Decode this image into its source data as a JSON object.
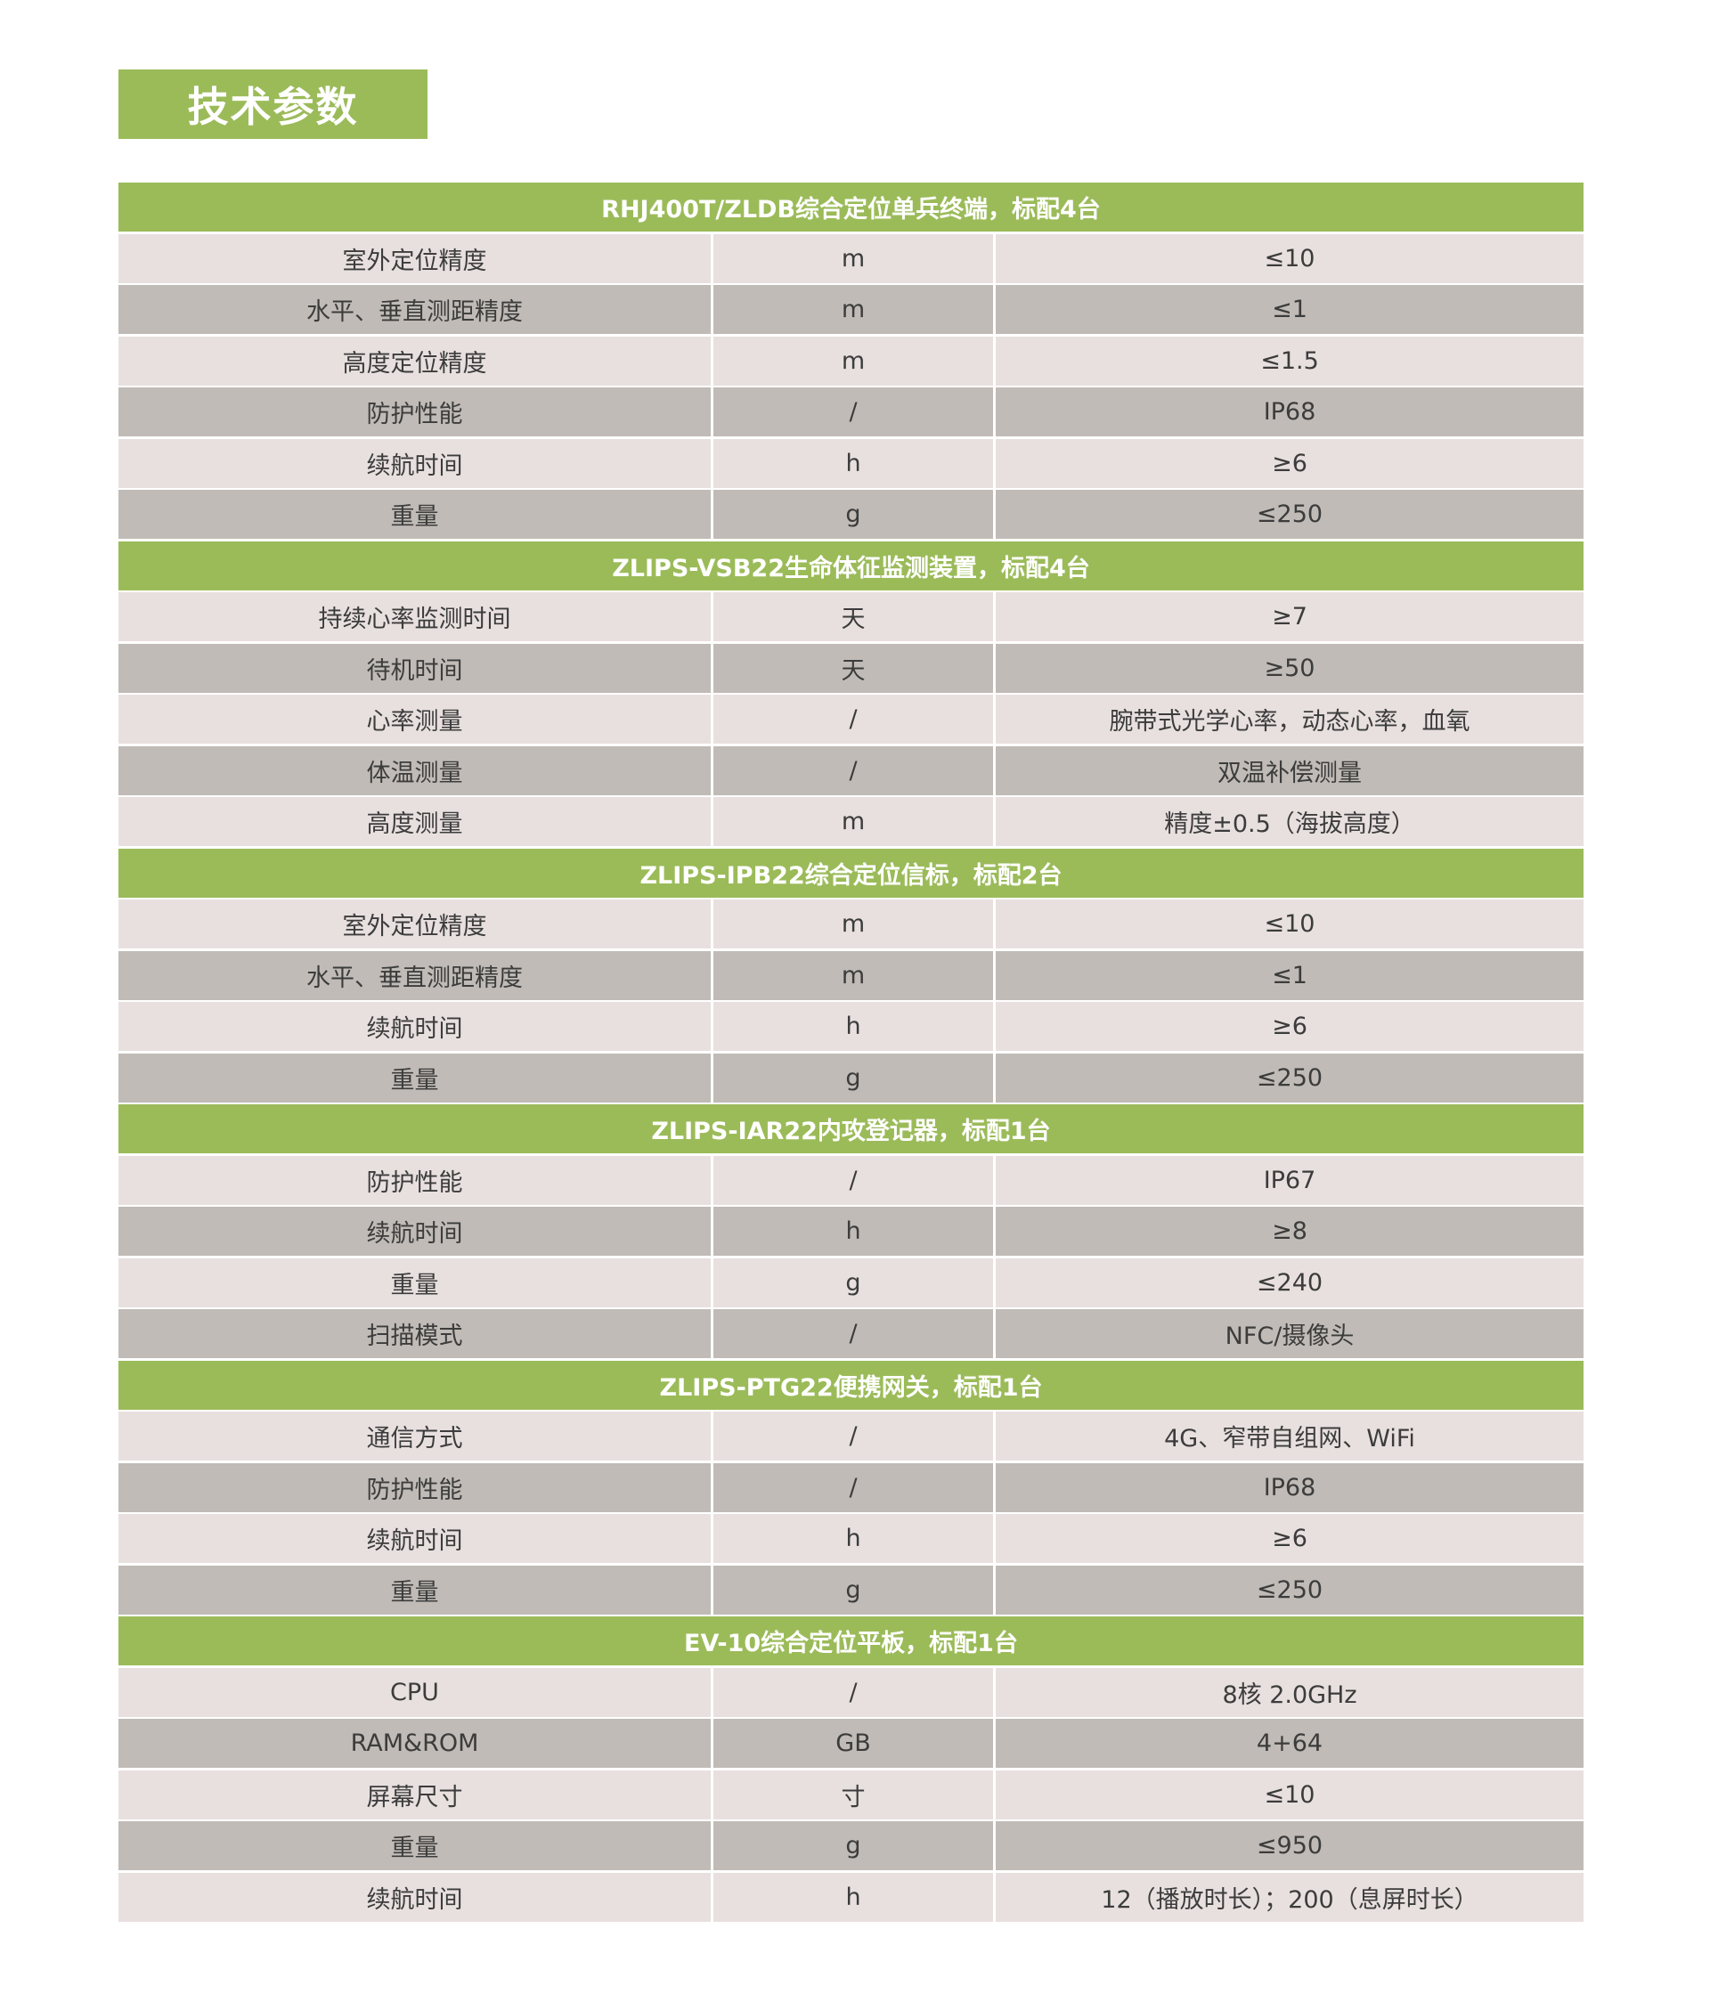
{
  "page_title": "技术参数",
  "colors": {
    "accent": "#9bbb59",
    "row_light": "#e8e0df",
    "row_dark": "#c0bbb6"
  },
  "groups": [
    {
      "title": "RHJ400T/ZLDB综合定位单兵终端，标配4台",
      "rows": [
        [
          "室外定位精度",
          "m",
          "≤10"
        ],
        [
          "水平、垂直测距精度",
          "m",
          "≤1"
        ],
        [
          "高度定位精度",
          "m",
          "≤1.5"
        ],
        [
          "防护性能",
          "/",
          "IP68"
        ],
        [
          "续航时间",
          "h",
          "≥6"
        ],
        [
          "重量",
          "g",
          "≤250"
        ]
      ]
    },
    {
      "title": "ZLIPS-VSB22生命体征监测装置，标配4台",
      "rows": [
        [
          "持续心率监测时间",
          "天",
          "≥7"
        ],
        [
          "待机时间",
          "天",
          "≥50"
        ],
        [
          "心率测量",
          "/",
          "腕带式光学心率，动态心率，血氧"
        ],
        [
          "体温测量",
          "/",
          "双温补偿测量"
        ],
        [
          "高度测量",
          "m",
          "精度±0.5（海拔高度）"
        ]
      ]
    },
    {
      "title": "ZLIPS-IPB22综合定位信标，标配2台",
      "rows": [
        [
          "室外定位精度",
          "m",
          "≤10"
        ],
        [
          "水平、垂直测距精度",
          "m",
          "≤1"
        ],
        [
          "续航时间",
          "h",
          "≥6"
        ],
        [
          "重量",
          "g",
          "≤250"
        ]
      ]
    },
    {
      "title": "ZLIPS-IAR22内攻登记器，标配1台",
      "rows": [
        [
          "防护性能",
          "/",
          "IP67"
        ],
        [
          "续航时间",
          "h",
          "≥8"
        ],
        [
          "重量",
          "g",
          "≤240"
        ],
        [
          "扫描模式",
          "/",
          "NFC/摄像头"
        ]
      ]
    },
    {
      "title": "ZLIPS-PTG22便携网关，标配1台",
      "rows": [
        [
          "通信方式",
          "/",
          "4G、窄带自组网、WiFi"
        ],
        [
          "防护性能",
          "/",
          "IP68"
        ],
        [
          "续航时间",
          "h",
          "≥6"
        ],
        [
          "重量",
          "g",
          "≤250"
        ]
      ]
    },
    {
      "title": "EV-10综合定位平板，标配1台",
      "rows": [
        [
          "CPU",
          "/",
          "8核 2.0GHz"
        ],
        [
          "RAM&ROM",
          "GB",
          "4+64"
        ],
        [
          "屏幕尺寸",
          "寸",
          "≤10"
        ],
        [
          "重量",
          "g",
          "≤950"
        ],
        [
          "续航时间",
          "h",
          "12（播放时长）；200（息屏时长）"
        ]
      ]
    }
  ]
}
